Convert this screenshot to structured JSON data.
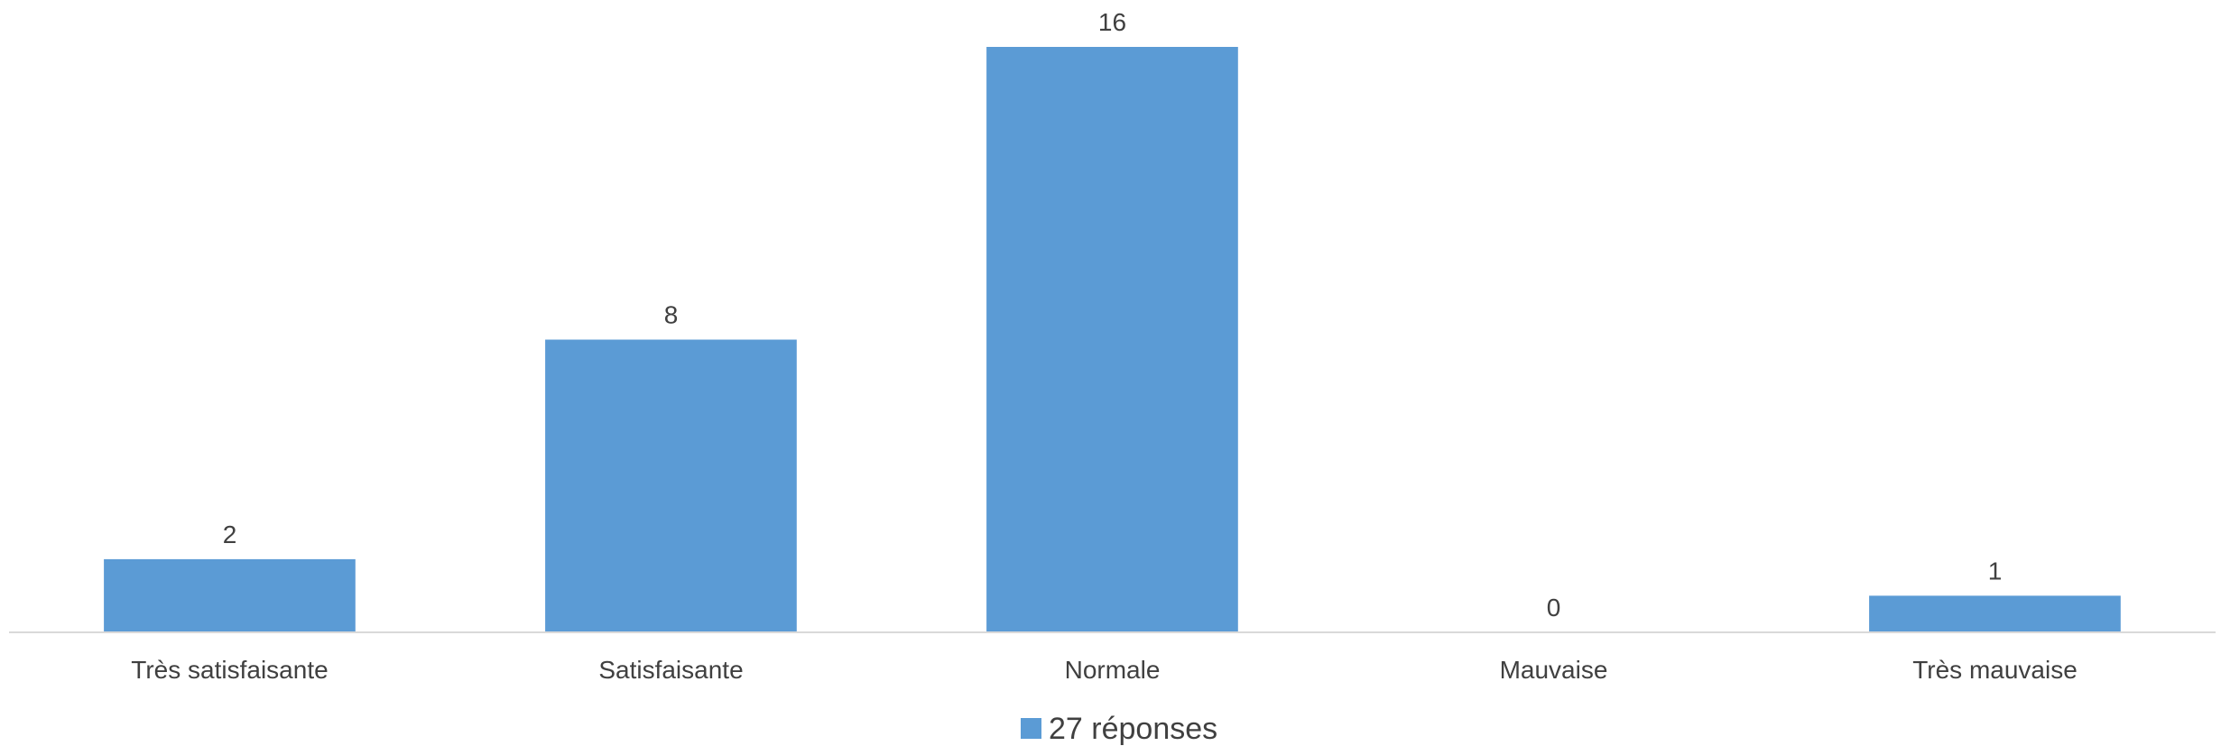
{
  "chart_data": {
    "type": "bar",
    "categories": [
      "Très satisfaisante",
      "Satisfaisante",
      "Normale",
      "Mauvaise",
      "Très mauvaise"
    ],
    "series": [
      {
        "name": "27 réponses",
        "values": [
          2,
          8,
          16,
          0,
          1
        ],
        "color": "#5B9BD5"
      }
    ],
    "title": "",
    "xlabel": "",
    "ylabel": "",
    "ylim": [
      0,
      16
    ],
    "grid": false,
    "data_labels": true,
    "legend": "bottom-center"
  }
}
